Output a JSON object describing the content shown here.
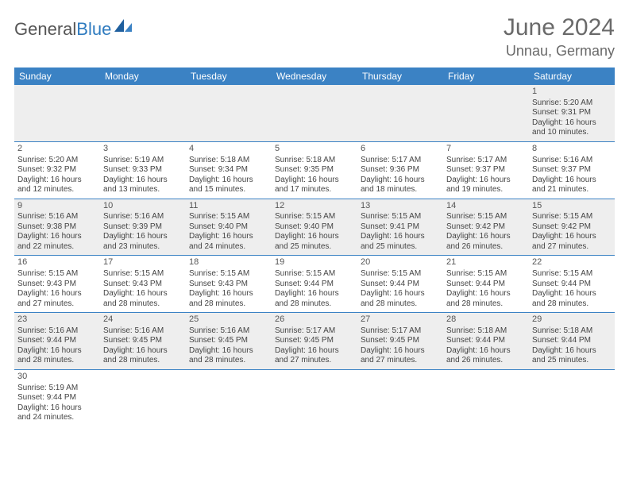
{
  "logo": {
    "text_a": "General",
    "text_b": "Blue"
  },
  "header": {
    "month": "June 2024",
    "location": "Unnau, Germany"
  },
  "colors": {
    "header_bg": "#3b82c4",
    "header_text": "#ffffff",
    "row_alt": "#eeeeee",
    "border": "#3b82c4",
    "title_color": "#6a6a6a"
  },
  "day_headers": [
    "Sunday",
    "Monday",
    "Tuesday",
    "Wednesday",
    "Thursday",
    "Friday",
    "Saturday"
  ],
  "weeks": [
    [
      null,
      null,
      null,
      null,
      null,
      null,
      {
        "n": "1",
        "sr": "5:20 AM",
        "ss": "9:31 PM",
        "d1": "16 hours",
        "d2": "and 10 minutes."
      }
    ],
    [
      {
        "n": "2",
        "sr": "5:20 AM",
        "ss": "9:32 PM",
        "d1": "16 hours",
        "d2": "and 12 minutes."
      },
      {
        "n": "3",
        "sr": "5:19 AM",
        "ss": "9:33 PM",
        "d1": "16 hours",
        "d2": "and 13 minutes."
      },
      {
        "n": "4",
        "sr": "5:18 AM",
        "ss": "9:34 PM",
        "d1": "16 hours",
        "d2": "and 15 minutes."
      },
      {
        "n": "5",
        "sr": "5:18 AM",
        "ss": "9:35 PM",
        "d1": "16 hours",
        "d2": "and 17 minutes."
      },
      {
        "n": "6",
        "sr": "5:17 AM",
        "ss": "9:36 PM",
        "d1": "16 hours",
        "d2": "and 18 minutes."
      },
      {
        "n": "7",
        "sr": "5:17 AM",
        "ss": "9:37 PM",
        "d1": "16 hours",
        "d2": "and 19 minutes."
      },
      {
        "n": "8",
        "sr": "5:16 AM",
        "ss": "9:37 PM",
        "d1": "16 hours",
        "d2": "and 21 minutes."
      }
    ],
    [
      {
        "n": "9",
        "sr": "5:16 AM",
        "ss": "9:38 PM",
        "d1": "16 hours",
        "d2": "and 22 minutes."
      },
      {
        "n": "10",
        "sr": "5:16 AM",
        "ss": "9:39 PM",
        "d1": "16 hours",
        "d2": "and 23 minutes."
      },
      {
        "n": "11",
        "sr": "5:15 AM",
        "ss": "9:40 PM",
        "d1": "16 hours",
        "d2": "and 24 minutes."
      },
      {
        "n": "12",
        "sr": "5:15 AM",
        "ss": "9:40 PM",
        "d1": "16 hours",
        "d2": "and 25 minutes."
      },
      {
        "n": "13",
        "sr": "5:15 AM",
        "ss": "9:41 PM",
        "d1": "16 hours",
        "d2": "and 25 minutes."
      },
      {
        "n": "14",
        "sr": "5:15 AM",
        "ss": "9:42 PM",
        "d1": "16 hours",
        "d2": "and 26 minutes."
      },
      {
        "n": "15",
        "sr": "5:15 AM",
        "ss": "9:42 PM",
        "d1": "16 hours",
        "d2": "and 27 minutes."
      }
    ],
    [
      {
        "n": "16",
        "sr": "5:15 AM",
        "ss": "9:43 PM",
        "d1": "16 hours",
        "d2": "and 27 minutes."
      },
      {
        "n": "17",
        "sr": "5:15 AM",
        "ss": "9:43 PM",
        "d1": "16 hours",
        "d2": "and 28 minutes."
      },
      {
        "n": "18",
        "sr": "5:15 AM",
        "ss": "9:43 PM",
        "d1": "16 hours",
        "d2": "and 28 minutes."
      },
      {
        "n": "19",
        "sr": "5:15 AM",
        "ss": "9:44 PM",
        "d1": "16 hours",
        "d2": "and 28 minutes."
      },
      {
        "n": "20",
        "sr": "5:15 AM",
        "ss": "9:44 PM",
        "d1": "16 hours",
        "d2": "and 28 minutes."
      },
      {
        "n": "21",
        "sr": "5:15 AM",
        "ss": "9:44 PM",
        "d1": "16 hours",
        "d2": "and 28 minutes."
      },
      {
        "n": "22",
        "sr": "5:15 AM",
        "ss": "9:44 PM",
        "d1": "16 hours",
        "d2": "and 28 minutes."
      }
    ],
    [
      {
        "n": "23",
        "sr": "5:16 AM",
        "ss": "9:44 PM",
        "d1": "16 hours",
        "d2": "and 28 minutes."
      },
      {
        "n": "24",
        "sr": "5:16 AM",
        "ss": "9:45 PM",
        "d1": "16 hours",
        "d2": "and 28 minutes."
      },
      {
        "n": "25",
        "sr": "5:16 AM",
        "ss": "9:45 PM",
        "d1": "16 hours",
        "d2": "and 28 minutes."
      },
      {
        "n": "26",
        "sr": "5:17 AM",
        "ss": "9:45 PM",
        "d1": "16 hours",
        "d2": "and 27 minutes."
      },
      {
        "n": "27",
        "sr": "5:17 AM",
        "ss": "9:45 PM",
        "d1": "16 hours",
        "d2": "and 27 minutes."
      },
      {
        "n": "28",
        "sr": "5:18 AM",
        "ss": "9:44 PM",
        "d1": "16 hours",
        "d2": "and 26 minutes."
      },
      {
        "n": "29",
        "sr": "5:18 AM",
        "ss": "9:44 PM",
        "d1": "16 hours",
        "d2": "and 25 minutes."
      }
    ],
    [
      {
        "n": "30",
        "sr": "5:19 AM",
        "ss": "9:44 PM",
        "d1": "16 hours",
        "d2": "and 24 minutes."
      },
      null,
      null,
      null,
      null,
      null,
      null
    ]
  ],
  "labels": {
    "sunrise": "Sunrise: ",
    "sunset": "Sunset: ",
    "daylight": "Daylight: "
  }
}
